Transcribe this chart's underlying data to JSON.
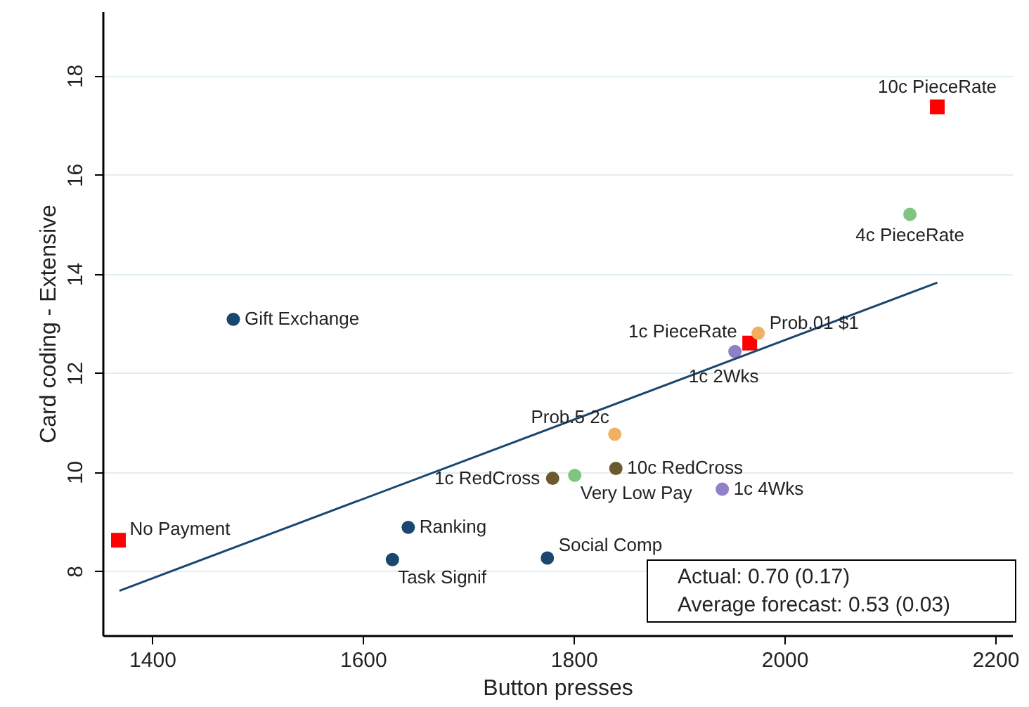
{
  "chart_data": {
    "type": "scatter",
    "xlabel": "Button presses",
    "ylabel": "Card coding - Extensive",
    "xlim": [
      1353,
      2216
    ],
    "xticks": [
      1400,
      1600,
      1800,
      2000,
      2200
    ],
    "ylim": [
      6.7,
      19.3
    ],
    "yticks": [
      8,
      10,
      12,
      14,
      16,
      18
    ],
    "grid": "y",
    "series": [
      {
        "color": "#ff0000",
        "marker": "square",
        "x": [
          2145,
          1967,
          1368
        ],
        "values": [
          17.37,
          12.6,
          8.62
        ]
      },
      {
        "color": "#7fc47f",
        "marker": "circle",
        "x": [
          2119,
          1801
        ],
        "values": [
          15.2,
          9.93
        ]
      },
      {
        "color": "#f0b060",
        "marker": "circle",
        "x": [
          1975,
          1839
        ],
        "values": [
          12.8,
          10.76
        ]
      },
      {
        "color": "#8f80c8",
        "marker": "circle",
        "x": [
          1953,
          1941
        ],
        "values": [
          12.43,
          9.65
        ]
      },
      {
        "color": "#1a476f",
        "marker": "circle",
        "x": [
          1477,
          1643,
          1628,
          1775
        ],
        "values": [
          13.08,
          8.88,
          8.23,
          8.26
        ]
      },
      {
        "color": "#6b5a2e",
        "marker": "circle",
        "x": [
          1840,
          1780
        ],
        "values": [
          10.07,
          9.87
        ]
      },
      {
        "type": "line",
        "color": "#1a476f",
        "marker": "none",
        "x": [
          1369,
          2145
        ],
        "values": [
          7.6,
          13.82
        ]
      }
    ],
    "annotations": [
      {
        "text": "10c PieceRate",
        "x": 2145,
        "y": 17.37
      },
      {
        "text": "4c PieceRate",
        "x": 2119,
        "y": 15.2
      },
      {
        "text": "1c PieceRate",
        "x": 1967,
        "y": 12.6
      },
      {
        "text": "Prob.01 $1",
        "x": 1975,
        "y": 12.8
      },
      {
        "text": "1c 2Wks",
        "x": 1953,
        "y": 12.43
      },
      {
        "text": "Gift Exchange",
        "x": 1477,
        "y": 13.08
      },
      {
        "text": "Prob.5 2c",
        "x": 1839,
        "y": 10.76
      },
      {
        "text": "10c RedCross",
        "x": 1840,
        "y": 10.07
      },
      {
        "text": "1c RedCross",
        "x": 1780,
        "y": 9.87
      },
      {
        "text": "Very Low Pay",
        "x": 1801,
        "y": 9.93
      },
      {
        "text": "1c 4Wks",
        "x": 1941,
        "y": 9.65
      },
      {
        "text": "No Payment",
        "x": 1368,
        "y": 8.62
      },
      {
        "text": "Ranking",
        "x": 1643,
        "y": 8.88
      },
      {
        "text": "Task Signif",
        "x": 1628,
        "y": 8.23
      },
      {
        "text": "Social Comp",
        "x": 1775,
        "y": 8.26
      },
      "Actual: 0.70 (0.17)",
      "Average forecast: 0.53 (0.03)"
    ]
  }
}
